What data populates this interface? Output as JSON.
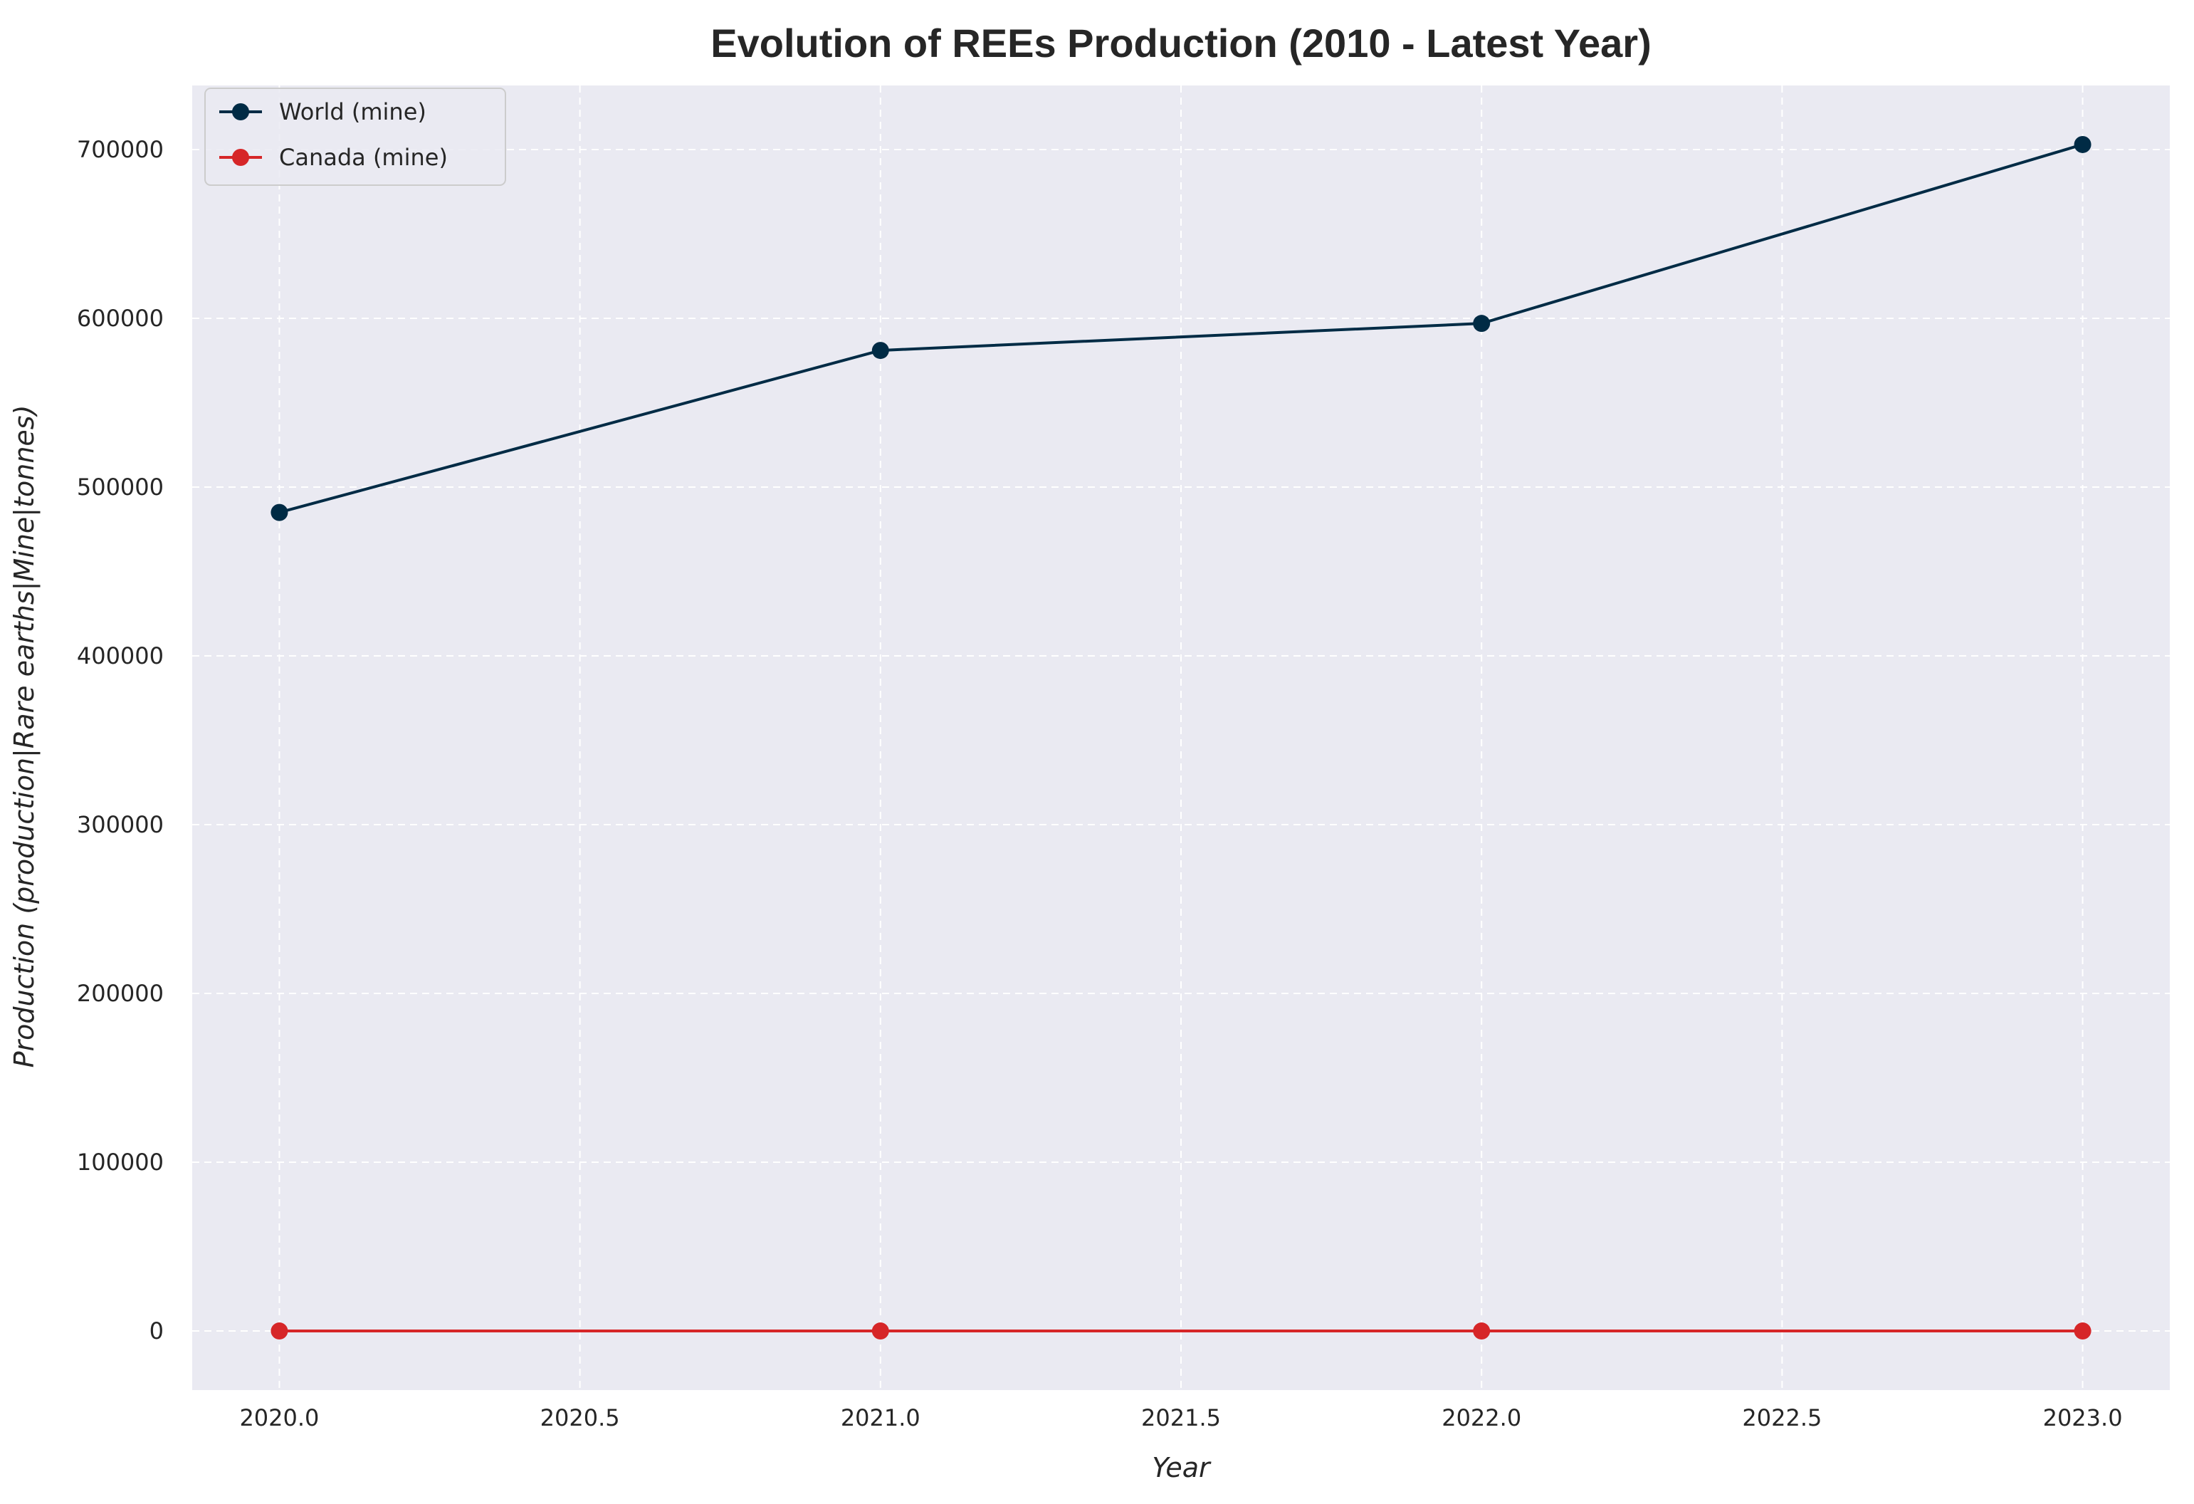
{
  "chart_data": {
    "type": "line",
    "title": "Evolution of REEs Production (2010 - Latest Year)",
    "xlabel": "Year",
    "ylabel": "Production (production|Rare earths|Mine|tonnes)",
    "x": [
      2020,
      2021,
      2022,
      2023
    ],
    "xlim": [
      2019.855,
      2023.145
    ],
    "ylim": [
      -35000,
      738000
    ],
    "xticks": [
      2020.0,
      2020.5,
      2021.0,
      2021.5,
      2022.0,
      2022.5,
      2023.0
    ],
    "xtick_labels": [
      "2020.0",
      "2020.5",
      "2021.0",
      "2021.5",
      "2022.0",
      "2022.5",
      "2023.0"
    ],
    "yticks": [
      0,
      100000,
      200000,
      300000,
      400000,
      500000,
      600000,
      700000
    ],
    "ytick_labels": [
      "0",
      "100000",
      "200000",
      "300000",
      "400000",
      "500000",
      "600000",
      "700000"
    ],
    "grid": true,
    "grid_style": "dashed",
    "legend_position": "upper-left",
    "background_color": "#eaeaf2",
    "series": [
      {
        "name": "World (mine)",
        "values": [
          485000,
          581000,
          597000,
          703000
        ],
        "color": "#002b45",
        "marker": "circle"
      },
      {
        "name": "Canada (mine)",
        "values": [
          0,
          0,
          0,
          0
        ],
        "color": "#d62628",
        "marker": "circle"
      }
    ]
  }
}
